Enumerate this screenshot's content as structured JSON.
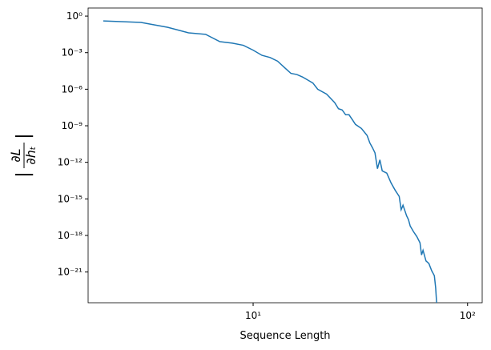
{
  "chart_data": {
    "type": "line",
    "xlabel": "Sequence Length",
    "ylabel": {
      "numerator": "∂L",
      "denominator": "∂hₜ"
    },
    "log_x": true,
    "log_y": true,
    "xlim": [
      1.7,
      117
    ],
    "ylim": [
      3e-24,
      4.6
    ],
    "xticks": [
      {
        "value": 10,
        "label": "10¹"
      },
      {
        "value": 100,
        "label": "10²"
      }
    ],
    "yticks": [
      {
        "value": 1,
        "label": "10⁰"
      },
      {
        "value": 0.001,
        "label": "10⁻³"
      },
      {
        "value": 1e-06,
        "label": "10⁻⁶"
      },
      {
        "value": 1e-09,
        "label": "10⁻⁹"
      },
      {
        "value": 1e-12,
        "label": "10⁻¹²"
      },
      {
        "value": 1e-15,
        "label": "10⁻¹⁵"
      },
      {
        "value": 1e-18,
        "label": "10⁻¹⁸"
      },
      {
        "value": 1e-21,
        "label": "10⁻²¹"
      }
    ],
    "x": [
      2,
      3,
      4,
      5,
      6,
      7,
      8,
      9,
      10,
      11,
      12,
      13,
      14,
      15,
      16,
      17,
      18,
      19,
      20,
      22,
      24,
      25,
      26,
      27,
      28,
      29,
      30,
      32,
      34,
      35,
      36,
      37,
      38,
      39,
      40,
      42,
      44,
      46,
      48,
      49,
      50,
      52,
      53,
      54,
      56,
      58,
      60,
      61,
      62,
      64,
      66,
      68,
      70,
      71,
      72
    ],
    "series": [
      {
        "color": "#1f77b4",
        "values": [
          0.4,
          0.3,
          0.12,
          0.042,
          0.032,
          0.008,
          0.006,
          0.004,
          0.0016,
          0.0006,
          0.0004,
          0.0002,
          6e-05,
          2e-05,
          1.6e-05,
          1e-05,
          5.6e-06,
          3.2e-06,
          1e-06,
          4e-07,
          8e-08,
          2.5e-08,
          2e-08,
          8e-09,
          8e-09,
          3.2e-09,
          1.3e-09,
          6e-10,
          1.6e-10,
          4e-11,
          1.6e-11,
          6e-12,
          3e-13,
          1.6e-12,
          2e-13,
          1.3e-13,
          2e-14,
          5e-15,
          1.6e-15,
          1.3e-16,
          3e-16,
          4e-17,
          2e-17,
          6e-18,
          2e-18,
          8e-19,
          2.5e-19,
          2.5e-20,
          6e-20,
          8e-21,
          5e-21,
          1.3e-21,
          5e-22,
          5e-23,
          1e-24
        ]
      }
    ]
  }
}
